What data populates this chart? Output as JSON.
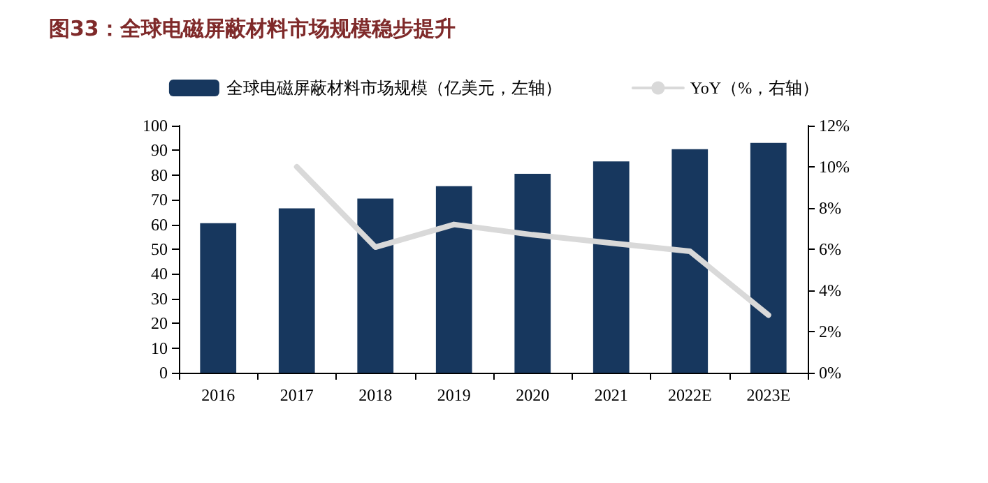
{
  "chart_data": {
    "type": "bar",
    "title": "图33：全球电磁屏蔽材料市场规模稳步提升",
    "categories": [
      "2016",
      "2017",
      "2018",
      "2019",
      "2020",
      "2021",
      "2022E",
      "2023E"
    ],
    "series": [
      {
        "name": "全球电磁屏蔽材料市场规模（亿美元，左轴）",
        "color": "#17375e",
        "values": [
          60.5,
          66.5,
          70.5,
          75.5,
          80.5,
          85.5,
          90.5,
          93
        ]
      },
      {
        "name": "YoY（%，右轴）",
        "type": "line",
        "axis": "y2",
        "color": "#d9d9d9",
        "values": [
          null,
          10,
          6.1,
          7.2,
          6.7,
          6.3,
          5.9,
          2.8
        ]
      }
    ],
    "ylim": [
      0,
      100
    ],
    "yticks": [
      0,
      10,
      20,
      30,
      40,
      50,
      60,
      70,
      80,
      90,
      100
    ],
    "y2lim": [
      0,
      12
    ],
    "y2ticks": [
      {
        "value": 0,
        "label": "0%"
      },
      {
        "value": 2,
        "label": "2%"
      },
      {
        "value": 4,
        "label": "4%"
      },
      {
        "value": 6,
        "label": "6%"
      },
      {
        "value": 8,
        "label": "8%"
      },
      {
        "value": 10,
        "label": "10%"
      },
      {
        "value": 12,
        "label": "12%"
      }
    ],
    "legend": "top",
    "grid": false,
    "marker": "none",
    "line_style": "solid"
  }
}
